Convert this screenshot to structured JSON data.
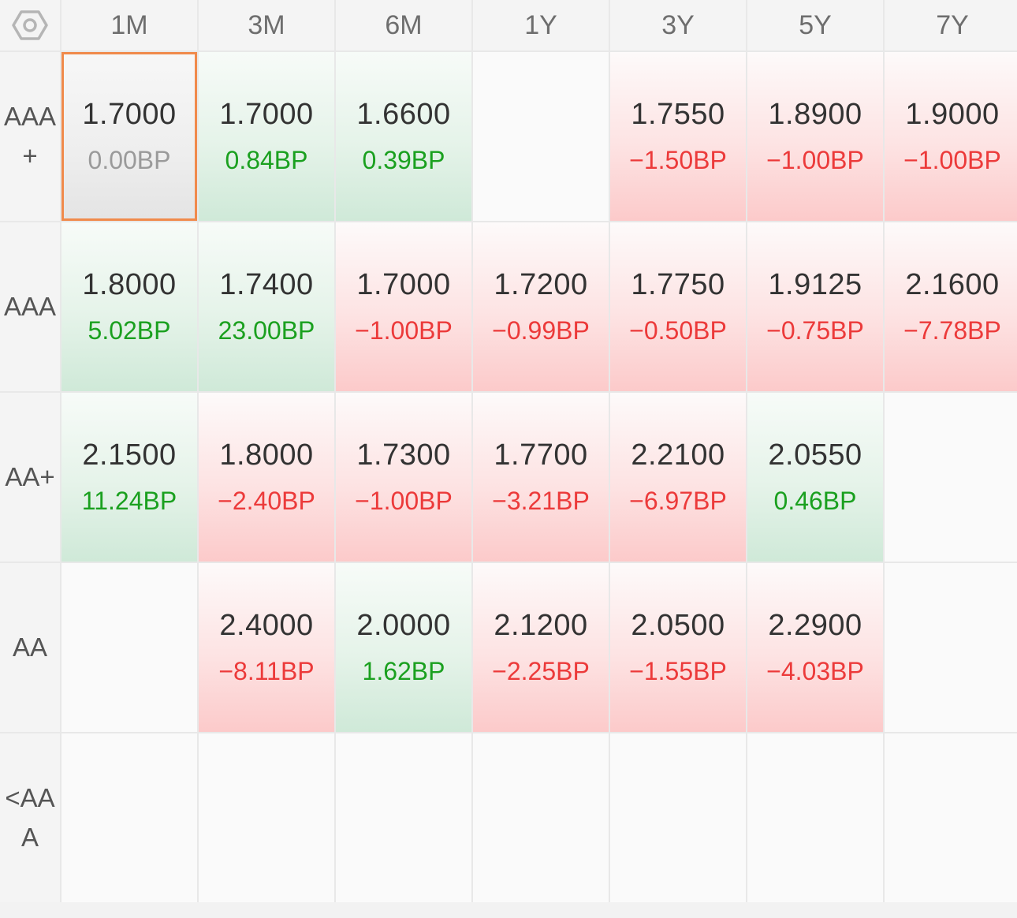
{
  "corner_icon": "hexagon-settings-icon",
  "columns": [
    "1M",
    "3M",
    "6M",
    "1Y",
    "3Y",
    "5Y",
    "7Y"
  ],
  "colors": {
    "up_text": "#ec3a3a",
    "down_text": "#1aa01f",
    "flat_text": "#9a9a9a",
    "selected_border": "#f08a4b"
  },
  "rows": [
    {
      "label": "AAA+",
      "cells": [
        {
          "rate": "1.7000",
          "change": "0.00BP",
          "trend": "flat",
          "selected": true
        },
        {
          "rate": "1.7000",
          "change": "0.84BP",
          "trend": "down"
        },
        {
          "rate": "1.6600",
          "change": "0.39BP",
          "trend": "down"
        },
        {
          "rate": "",
          "change": "",
          "trend": "empty"
        },
        {
          "rate": "1.7550",
          "change": "−1.50BP",
          "trend": "up"
        },
        {
          "rate": "1.8900",
          "change": "−1.00BP",
          "trend": "up"
        },
        {
          "rate": "1.9000",
          "change": "−1.00BP",
          "trend": "up"
        }
      ]
    },
    {
      "label": "AAA",
      "cells": [
        {
          "rate": "1.8000",
          "change": "5.02BP",
          "trend": "down"
        },
        {
          "rate": "1.7400",
          "change": "23.00BP",
          "trend": "down"
        },
        {
          "rate": "1.7000",
          "change": "−1.00BP",
          "trend": "up"
        },
        {
          "rate": "1.7200",
          "change": "−0.99BP",
          "trend": "up"
        },
        {
          "rate": "1.7750",
          "change": "−0.50BP",
          "trend": "up"
        },
        {
          "rate": "1.9125",
          "change": "−0.75BP",
          "trend": "up"
        },
        {
          "rate": "2.1600",
          "change": "−7.78BP",
          "trend": "up"
        }
      ]
    },
    {
      "label": "AA+",
      "cells": [
        {
          "rate": "2.1500",
          "change": "11.24BP",
          "trend": "down"
        },
        {
          "rate": "1.8000",
          "change": "−2.40BP",
          "trend": "up"
        },
        {
          "rate": "1.7300",
          "change": "−1.00BP",
          "trend": "up"
        },
        {
          "rate": "1.7700",
          "change": "−3.21BP",
          "trend": "up"
        },
        {
          "rate": "2.2100",
          "change": "−6.97BP",
          "trend": "up"
        },
        {
          "rate": "2.0550",
          "change": "0.46BP",
          "trend": "down"
        },
        {
          "rate": "",
          "change": "",
          "trend": "empty"
        }
      ]
    },
    {
      "label": "AA",
      "cells": [
        {
          "rate": "",
          "change": "",
          "trend": "empty"
        },
        {
          "rate": "2.4000",
          "change": "−8.11BP",
          "trend": "up"
        },
        {
          "rate": "2.0000",
          "change": "1.62BP",
          "trend": "down"
        },
        {
          "rate": "2.1200",
          "change": "−2.25BP",
          "trend": "up"
        },
        {
          "rate": "2.0500",
          "change": "−1.55BP",
          "trend": "up"
        },
        {
          "rate": "2.2900",
          "change": "−4.03BP",
          "trend": "up"
        },
        {
          "rate": "",
          "change": "",
          "trend": "empty"
        }
      ]
    },
    {
      "label": "<AAA",
      "cells": [
        {
          "rate": "",
          "change": "",
          "trend": "empty"
        },
        {
          "rate": "",
          "change": "",
          "trend": "empty"
        },
        {
          "rate": "",
          "change": "",
          "trend": "empty"
        },
        {
          "rate": "",
          "change": "",
          "trend": "empty"
        },
        {
          "rate": "",
          "change": "",
          "trend": "empty"
        },
        {
          "rate": "",
          "change": "",
          "trend": "empty"
        },
        {
          "rate": "",
          "change": "",
          "trend": "empty"
        }
      ]
    }
  ]
}
